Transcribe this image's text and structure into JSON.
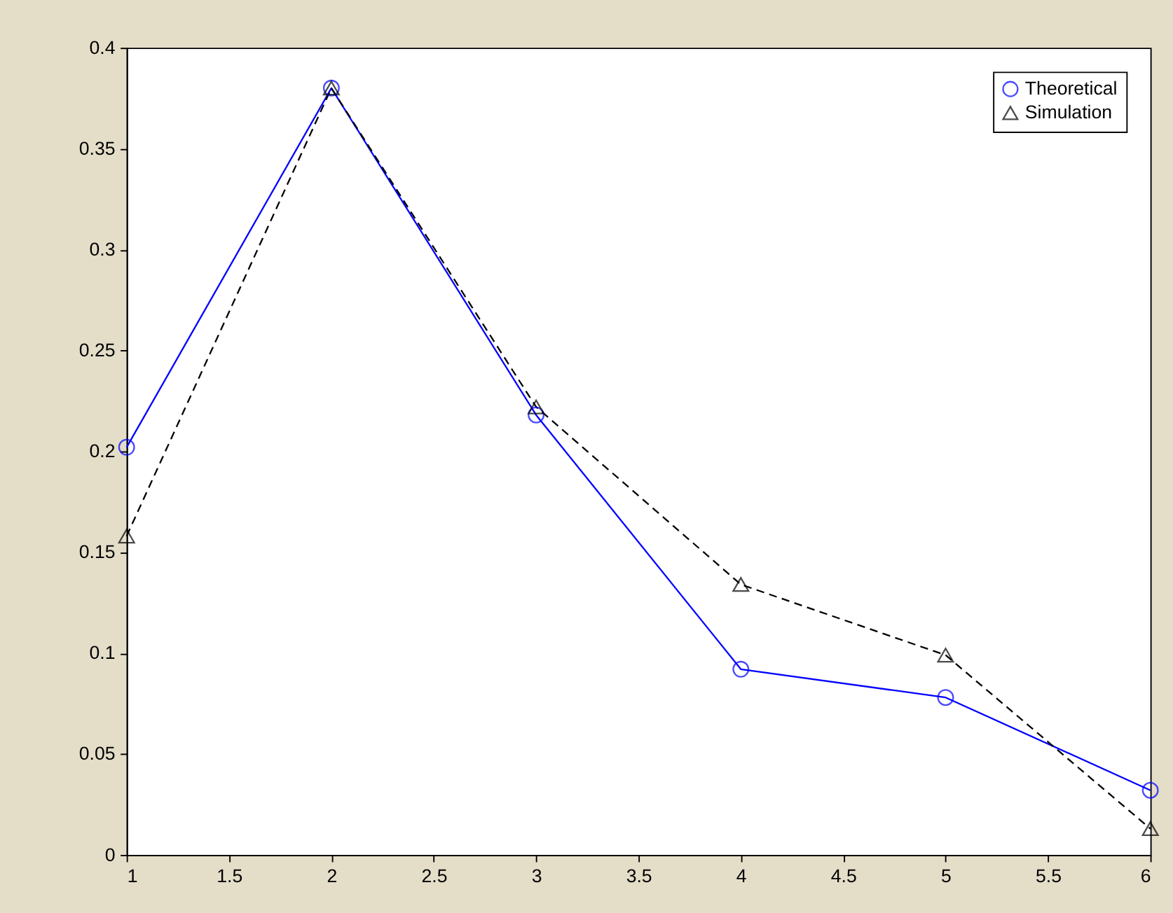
{
  "chart_data": {
    "type": "line",
    "x": [
      1,
      2,
      3,
      4,
      5,
      6
    ],
    "series": [
      {
        "name": "Theoretical",
        "color": "#0000ff",
        "marker": "circle",
        "line_style": "solid",
        "values": [
          0.202,
          0.38,
          0.218,
          0.092,
          0.078,
          0.032
        ]
      },
      {
        "name": "Simulation",
        "color": "#000000",
        "marker": "triangle",
        "line_style": "dashed",
        "values": [
          0.158,
          0.38,
          0.222,
          0.134,
          0.099,
          0.013
        ]
      }
    ],
    "xlim": [
      1,
      6
    ],
    "xticks": [
      1,
      1.5,
      2,
      2.5,
      3,
      3.5,
      4,
      4.5,
      5,
      5.5,
      6
    ],
    "ylim": [
      0,
      0.4
    ],
    "yticks": [
      0,
      0.05,
      0.1,
      0.15,
      0.2,
      0.25,
      0.3,
      0.35,
      0.4
    ],
    "grid": false,
    "legend": "top right"
  }
}
